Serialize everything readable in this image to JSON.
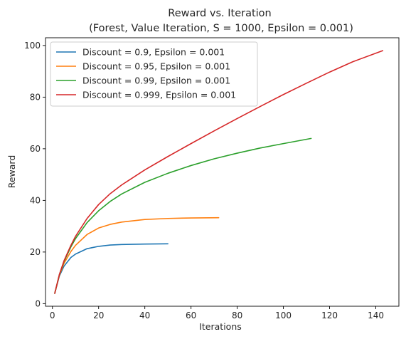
{
  "chart_data": {
    "type": "line",
    "title": "Reward vs. Iteration",
    "subtitle": "(Forest, Value Iteration, S = 1000, Epsilon = 0.001)",
    "xlabel": "Iterations",
    "ylabel": "Reward",
    "xlim": [
      -3,
      150
    ],
    "ylim": [
      -1,
      103
    ],
    "xticks": [
      0,
      20,
      40,
      60,
      80,
      100,
      120,
      140
    ],
    "yticks": [
      0,
      20,
      40,
      60,
      80,
      100
    ],
    "grid": false,
    "legend_position": "top-left",
    "series": [
      {
        "name": "Discount = 0.9, Epsilon = 0.001",
        "color": "#1f77b4",
        "x": [
          1,
          3,
          5,
          8,
          10,
          15,
          20,
          25,
          30,
          40,
          50
        ],
        "y": [
          4.0,
          10.7,
          14.5,
          17.9,
          19.2,
          21.3,
          22.2,
          22.7,
          22.9,
          23.1,
          23.2
        ]
      },
      {
        "name": "Discount = 0.95, Epsilon = 0.001",
        "color": "#ff7f0e",
        "x": [
          1,
          3,
          5,
          8,
          10,
          15,
          20,
          25,
          30,
          40,
          50,
          60,
          72
        ],
        "y": [
          4.0,
          11.0,
          15.6,
          20.2,
          22.6,
          26.8,
          29.3,
          30.7,
          31.6,
          32.6,
          33.0,
          33.2,
          33.3
        ]
      },
      {
        "name": "Discount = 0.99, Epsilon = 0.001",
        "color": "#2ca02c",
        "x": [
          1,
          3,
          5,
          8,
          10,
          15,
          20,
          25,
          30,
          40,
          50,
          60,
          70,
          80,
          90,
          100,
          112
        ],
        "y": [
          4.0,
          11.2,
          16.3,
          22.0,
          25.2,
          31.4,
          36.0,
          39.6,
          42.5,
          47.0,
          50.5,
          53.5,
          56.1,
          58.3,
          60.3,
          62.0,
          64.0
        ]
      },
      {
        "name": "Discount = 0.999, Epsilon = 0.001",
        "color": "#d62728",
        "x": [
          1,
          3,
          5,
          8,
          10,
          15,
          20,
          25,
          30,
          40,
          50,
          60,
          70,
          80,
          90,
          100,
          110,
          120,
          130,
          143
        ],
        "y": [
          4.0,
          11.3,
          16.6,
          22.6,
          26.1,
          33.0,
          38.4,
          42.6,
          46.0,
          51.8,
          57.0,
          62.0,
          66.9,
          71.7,
          76.4,
          81.0,
          85.4,
          89.7,
          93.7,
          98.0
        ]
      }
    ]
  }
}
